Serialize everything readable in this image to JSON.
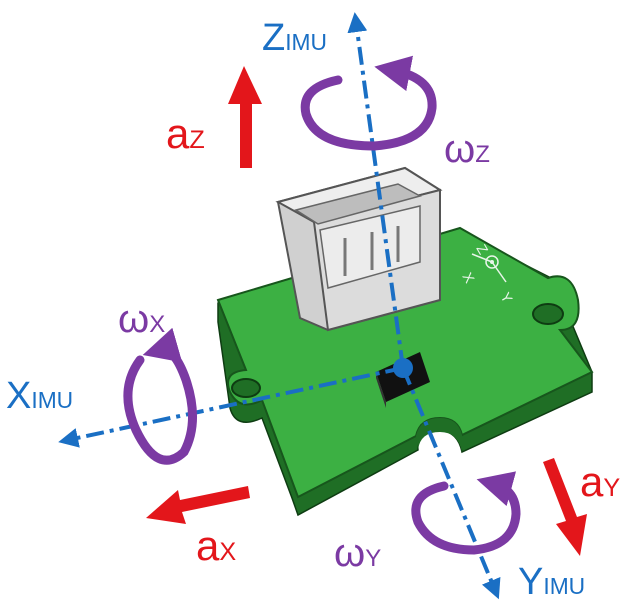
{
  "colors": {
    "imu_axis": "#1a6fc4",
    "acceleration": "#e3161b",
    "angular_velocity": "#7b3aa3",
    "pcb": "#3cb043",
    "pcb_edge": "#1f6e25",
    "connector": "#dcdcdc",
    "sensor_chip": "#111111"
  },
  "icons": {
    "axis_arrow": "arrow-icon",
    "rotation_arrow": "curved-arrow-icon"
  },
  "labels": {
    "z_imu": {
      "main": "Z",
      "sub": "IMU"
    },
    "x_imu": {
      "main": "X",
      "sub": "IMU"
    },
    "y_imu": {
      "main": "Y",
      "sub": "IMU"
    },
    "a_z": {
      "main": "a",
      "sub": "Z"
    },
    "a_x": {
      "main": "a",
      "sub": "X"
    },
    "a_y": {
      "main": "a",
      "sub": "Y"
    },
    "omega_z": {
      "main": "ω",
      "sub": "Z"
    },
    "omega_x": {
      "main": "ω",
      "sub": "X"
    },
    "omega_y": {
      "main": "ω",
      "sub": "Y"
    }
  },
  "board_silkscreen": {
    "z": "Z",
    "x": "X",
    "y": "Y"
  }
}
